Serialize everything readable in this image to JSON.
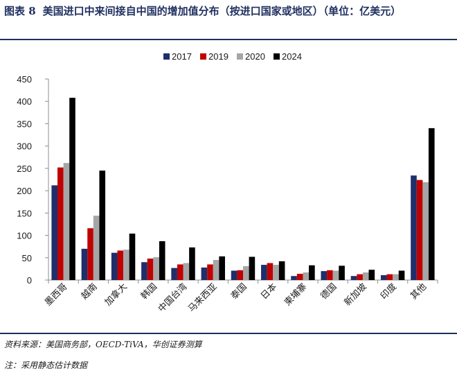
{
  "figure": {
    "number": "图表 8",
    "title": "美国进口中来间接自中国的增加值分布（按进口国家或地区）（单位：亿美元）",
    "source": "资料来源：美国商务部，OECD-TiVA，华创证券测算",
    "note": "注：采用静态估计数据"
  },
  "colors": {
    "2017": "#1f2f6b",
    "2019": "#c00000",
    "2020": "#a6a6a6",
    "2024": "#000000",
    "axis": "#8c8c8c",
    "rule": "#1f2f5f"
  },
  "chart_data": {
    "type": "bar",
    "title": "",
    "xlabel": "",
    "ylabel": "",
    "ylim": [
      0,
      450
    ],
    "yticks": [
      0,
      50,
      100,
      150,
      200,
      250,
      300,
      350,
      400,
      450
    ],
    "grid": false,
    "legend_position": "top-center",
    "categories": [
      "墨西哥",
      "越南",
      "加拿大",
      "韩国",
      "中国台湾",
      "马来西亚",
      "泰国",
      "日本",
      "柬埔寨",
      "德国",
      "新加坡",
      "印度",
      "其他"
    ],
    "series": [
      {
        "name": "2017",
        "values": [
          212,
          70,
          61,
          40,
          27,
          28,
          21,
          34,
          9,
          20,
          9,
          11,
          234
        ]
      },
      {
        "name": "2019",
        "values": [
          252,
          116,
          66,
          48,
          35,
          35,
          22,
          38,
          14,
          22,
          13,
          13,
          224
        ]
      },
      {
        "name": "2020",
        "values": [
          262,
          144,
          68,
          51,
          38,
          45,
          31,
          34,
          17,
          21,
          17,
          13,
          219
        ]
      },
      {
        "name": "2024",
        "values": [
          408,
          245,
          104,
          87,
          73,
          53,
          52,
          42,
          33,
          32,
          23,
          21,
          340
        ]
      }
    ]
  }
}
